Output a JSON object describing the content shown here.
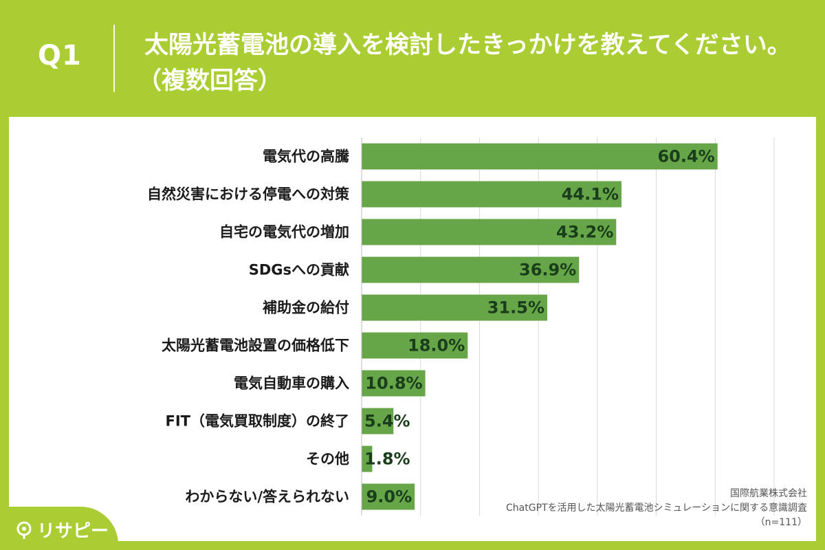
{
  "header": {
    "question": "Q1",
    "title_line1": "太陽光蓄電池の導入を検討したきっかけを教えてください。",
    "title_line2": "（複数回答）"
  },
  "chart_data": {
    "type": "bar",
    "orientation": "horizontal",
    "title": "",
    "xlabel": "",
    "ylabel": "",
    "xlim": [
      0,
      70
    ],
    "grid": true,
    "bar_color": "#66a648",
    "categories": [
      "電気代の高騰",
      "自然災害における停電への対策",
      "自宅の電気代の増加",
      "SDGsへの貢献",
      "補助金の給付",
      "太陽光蓄電池設置の価格低下",
      "電気自動車の購入",
      "FIT（電気買取制度）の終了",
      "その他",
      "わからない/答えられない"
    ],
    "values": [
      60.4,
      44.1,
      43.2,
      36.9,
      31.5,
      18.0,
      10.8,
      5.4,
      1.8,
      9.0
    ],
    "value_labels": [
      "60.4%",
      "44.1%",
      "43.2%",
      "36.9%",
      "31.5%",
      "18.0%",
      "10.8%",
      "5.4%",
      "1.8%",
      "9.0%"
    ]
  },
  "source": {
    "company": "国際航業株式会社",
    "survey": "ChatGPTを活用した太陽光蓄電池シミュレーションに関する意識調査",
    "sample": "（n=111）"
  },
  "logo": {
    "text": "リサピー",
    "icon": "location-pin-icon"
  }
}
